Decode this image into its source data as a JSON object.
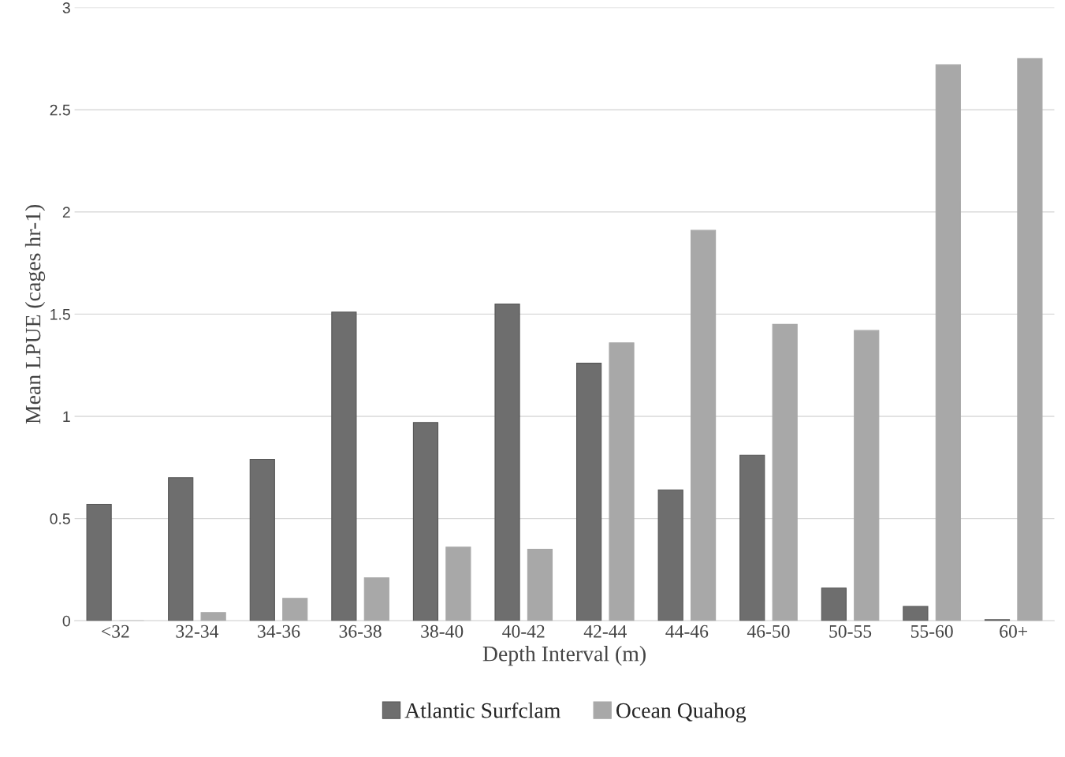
{
  "chart_data": {
    "type": "bar",
    "xlabel": "Depth Interval (m)",
    "ylabel": "Mean LPUE (cages hr-1)",
    "categories": [
      "<32",
      "32-34",
      "34-36",
      "36-38",
      "38-40",
      "40-42",
      "42-44",
      "44-46",
      "46-50",
      "50-55",
      "55-60",
      "60+"
    ],
    "series": [
      {
        "name": "Atlantic Surfclam",
        "color": "#6e6e6e",
        "values": [
          0.57,
          0.7,
          0.79,
          1.51,
          0.97,
          1.55,
          1.26,
          0.64,
          0.81,
          0.16,
          0.07,
          0.005
        ]
      },
      {
        "name": "Ocean Quahog",
        "color": "#a8a8a8",
        "values": [
          0,
          0.04,
          0.11,
          0.21,
          0.36,
          0.35,
          1.36,
          1.91,
          1.45,
          1.42,
          2.72,
          2.75
        ]
      }
    ],
    "ylim": [
      0,
      3
    ],
    "yticks": [
      0,
      0.5,
      1,
      1.5,
      2,
      2.5,
      3
    ],
    "grid": "y",
    "legend": "bottom"
  }
}
